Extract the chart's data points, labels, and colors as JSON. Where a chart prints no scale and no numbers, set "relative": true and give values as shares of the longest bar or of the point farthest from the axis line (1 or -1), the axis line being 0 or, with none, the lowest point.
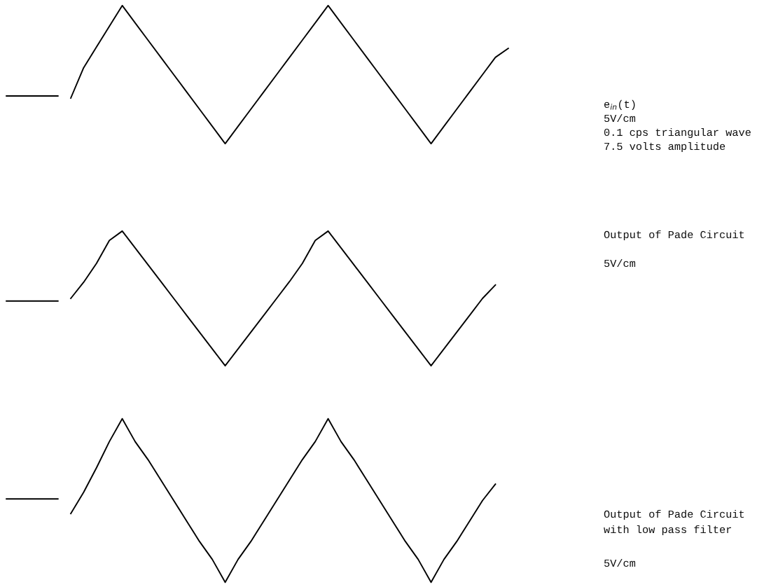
{
  "chart_data": [
    {
      "type": "line",
      "relative": true,
      "categories": [
        null,
        null,
        null,
        null,
        null,
        null,
        null,
        null,
        null,
        null,
        null,
        null,
        null,
        null,
        null,
        null,
        null,
        null,
        null,
        null,
        null,
        null,
        null,
        null,
        null,
        null,
        null,
        null,
        null,
        null,
        null,
        null,
        null,
        null,
        null,
        null,
        null,
        null,
        null,
        null
      ],
      "series": [
        {
          "color": "#000000",
          "values": [
            0.345,
            0.345,
            0.345,
            0.345,
            0.345,
            null,
            null,
            null,
            null,
            null,
            null,
            null,
            null,
            null,
            null,
            null,
            null,
            null,
            null,
            null,
            null,
            null,
            null,
            null,
            null,
            null,
            null,
            null,
            null,
            null,
            null,
            null,
            null,
            null,
            null,
            null,
            null,
            null,
            null,
            null
          ]
        },
        {
          "color": "#000000",
          "values": [
            null,
            null,
            null,
            null,
            null,
            0.33,
            0.55,
            0.7,
            0.85,
            1,
            0.875,
            0.75,
            0.625,
            0.5,
            0.375,
            0.25,
            0.125,
            0,
            0.125,
            0.25,
            0.375,
            0.5,
            0.625,
            0.75,
            0.875,
            1,
            0.875,
            0.75,
            0.625,
            0.5,
            0.375,
            0.25,
            0.125,
            0,
            0.125,
            0.25,
            0.375,
            0.5,
            0.625,
            0.69
          ]
        }
      ],
      "annotations": [
        "e$_{in}$(t)",
        "5V/cm",
        "0.1 cps triangular wave",
        "7.5 volts amplitude"
      ]
    },
    {
      "type": "line",
      "relative": true,
      "categories": [
        null,
        null,
        null,
        null,
        null,
        null,
        null,
        null,
        null,
        null,
        null,
        null,
        null,
        null,
        null,
        null,
        null,
        null,
        null,
        null,
        null,
        null,
        null,
        null,
        null,
        null,
        null,
        null,
        null,
        null,
        null,
        null,
        null,
        null,
        null,
        null,
        null,
        null,
        null,
        null
      ],
      "series": [
        {
          "color": "#000000",
          "values": [
            0.48,
            0.48,
            0.48,
            0.48,
            0.48,
            null,
            null,
            null,
            null,
            null,
            null,
            null,
            null,
            null,
            null,
            null,
            null,
            null,
            null,
            null,
            null,
            null,
            null,
            null,
            null,
            null,
            null,
            null,
            null,
            null,
            null,
            null,
            null,
            null,
            null,
            null,
            null,
            null,
            null,
            null
          ]
        },
        {
          "color": "#000000",
          "values": [
            null,
            null,
            null,
            null,
            null,
            0.5,
            0.62,
            0.76,
            0.93,
            1,
            0.875,
            0.75,
            0.625,
            0.5,
            0.375,
            0.25,
            0.125,
            0,
            0.125,
            0.25,
            0.375,
            0.5,
            0.625,
            0.76,
            0.93,
            1,
            0.875,
            0.75,
            0.625,
            0.5,
            0.375,
            0.25,
            0.125,
            0,
            0.125,
            0.25,
            0.375,
            0.5,
            0.6,
            null
          ]
        }
      ],
      "annotations": [
        "Output of Pade Circuit",
        "5V/cm"
      ]
    },
    {
      "type": "line",
      "relative": true,
      "categories": [
        null,
        null,
        null,
        null,
        null,
        null,
        null,
        null,
        null,
        null,
        null,
        null,
        null,
        null,
        null,
        null,
        null,
        null,
        null,
        null,
        null,
        null,
        null,
        null,
        null,
        null,
        null,
        null,
        null,
        null,
        null,
        null,
        null,
        null,
        null,
        null,
        null,
        null,
        null,
        null
      ],
      "series": [
        {
          "color": "#000000",
          "values": [
            0.51,
            0.51,
            0.51,
            0.51,
            0.51,
            null,
            null,
            null,
            null,
            null,
            null,
            null,
            null,
            null,
            null,
            null,
            null,
            null,
            null,
            null,
            null,
            null,
            null,
            null,
            null,
            null,
            null,
            null,
            null,
            null,
            null,
            null,
            null,
            null,
            null,
            null,
            null,
            null,
            null,
            null
          ]
        },
        {
          "color": "#000000",
          "values": [
            null,
            null,
            null,
            null,
            null,
            0.42,
            0.55,
            0.7,
            0.86,
            1,
            0.86,
            0.75,
            0.625,
            0.5,
            0.375,
            0.25,
            0.14,
            0,
            0.14,
            0.25,
            0.375,
            0.5,
            0.625,
            0.75,
            0.86,
            1,
            0.86,
            0.75,
            0.625,
            0.5,
            0.375,
            0.25,
            0.14,
            0,
            0.14,
            0.25,
            0.375,
            0.5,
            0.6,
            null
          ]
        }
      ],
      "annotations": [
        "Output of Pade Circuit",
        "with low pass filter",
        "5V/cm"
      ]
    }
  ]
}
